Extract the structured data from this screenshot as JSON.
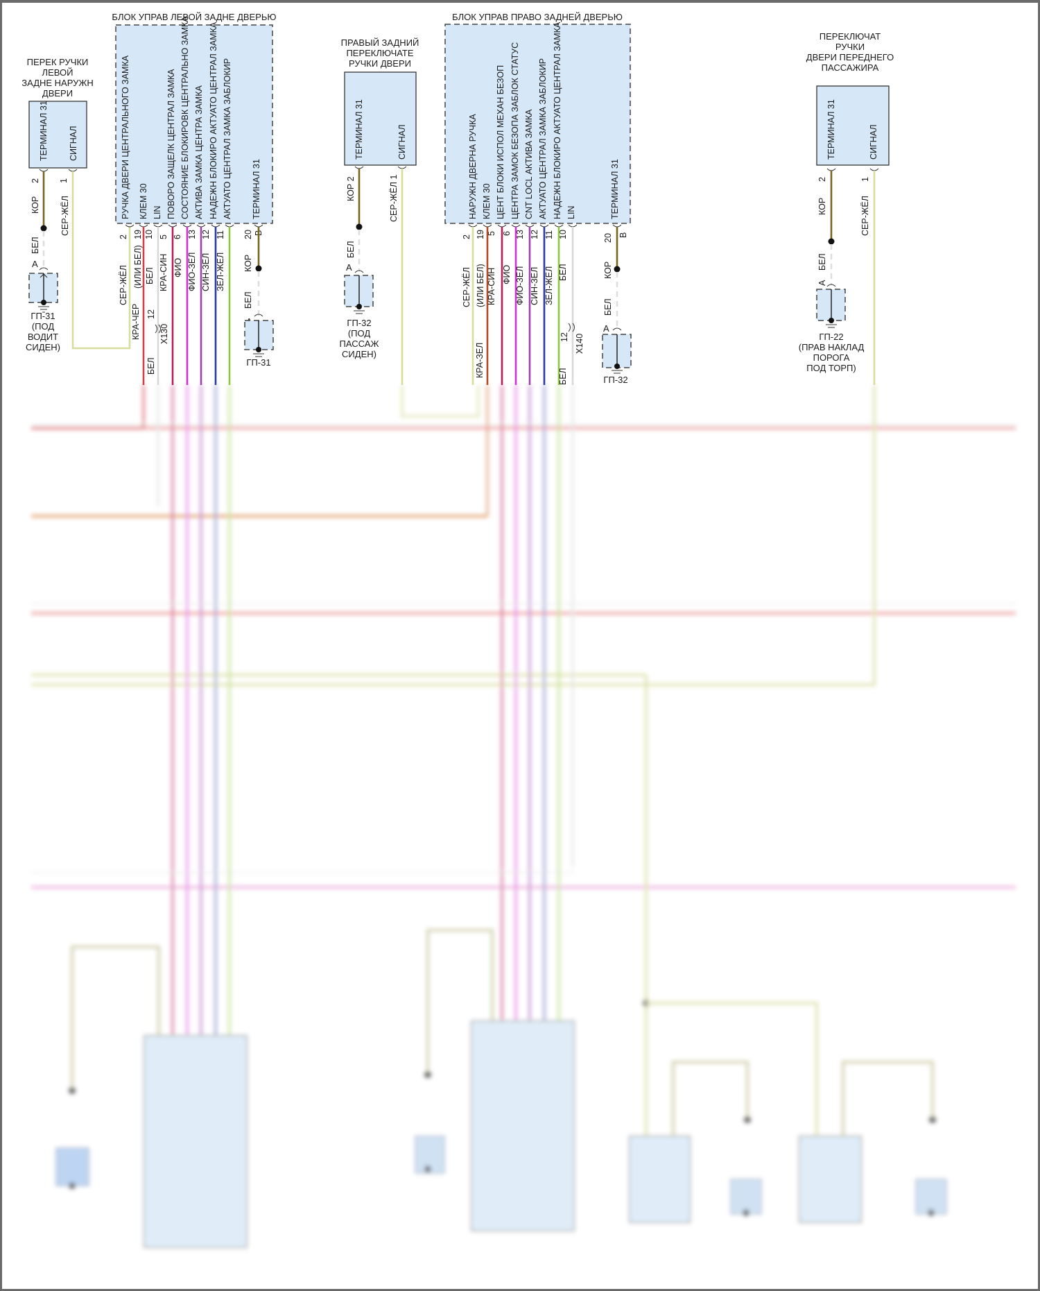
{
  "left_switch": {
    "title": [
      "ПЕРЕК РУЧКИ",
      "ЛЕВОЙ",
      "ЗАДНЕ НАРУЖН",
      "ДВЕРИ"
    ],
    "pins": [
      "ТЕРМИНАЛ 31",
      "СИГНАЛ"
    ],
    "pin_numbers": [
      "2",
      "1"
    ],
    "wires": [
      "КОР",
      "СЕР-ЖЁЛ",
      "БЕЛ"
    ],
    "connector": "A",
    "ground": [
      "ГП-31",
      "(ПОД",
      "ВОДИТ",
      "СИДЕН)"
    ]
  },
  "left_block": {
    "title": "БЛОК УПРАВ ЛЕВОЙ ЗАДНЕ ДВЕРЬЮ",
    "pins": [
      "РУЧКА ДВЕРИ ЦЕНТРАЛЬНОГО ЗАМКА",
      "КЛЕМ 30",
      "LIN",
      "ПОВОРО ЗАЩЕЛК ЦЕНТРАЛ ЗАМКА",
      "СОСТОЯНИЕ БЛОКИРОВК ЦЕНТРАЛЬНО ЗАМКА",
      "АКТИВА ЗАМКА ЦЕНТРА ЗАМКА",
      "НАДЕЖН БЛОКИРО АКТУАТО ЦЕНТРАЛ ЗАМКА",
      "АКТУАТО ЦЕНТРАЛ ЗАМКА ЗАБЛОКИР",
      "ТЕРМИНАЛ 31"
    ],
    "pin_numbers": [
      "2",
      "19",
      "10",
      "5",
      "6",
      "13",
      "12",
      "11",
      "20",
      "B"
    ],
    "wires": [
      "СЕР-ЖЁЛ",
      "(ИЛИ БЕЛ)",
      "БЕЛ",
      "КРА-СИН",
      "ФИО",
      "ФИО-ЗЕЛ",
      "СИН-ЗЕЛ",
      "ЗЕЛ-ЖЕЛ",
      "КОР"
    ],
    "lower_wires": [
      "КРА-ЧЕР",
      "12",
      "X130",
      "БЕЛ"
    ],
    "ground_wire": "БЕЛ",
    "connector": "A",
    "ground": "ГП-31"
  },
  "mid_switch": {
    "title": [
      "ПРАВЫЙ ЗАДНИЙ",
      "ПЕРЕКЛЮЧАТЕ",
      "РУЧКИ ДВЕРИ"
    ],
    "pins": [
      "ТЕРМИНАЛ 31",
      "СИГНАЛ"
    ],
    "wires": [
      "КОР 2",
      "СЕР-ЖЁЛ 1",
      "БЕЛ"
    ],
    "connector": "A",
    "ground": [
      "ГП-32",
      "(ПОД",
      "ПАССАЖ",
      "СИДЕН)"
    ]
  },
  "right_block": {
    "title": "БЛОК УПРАВ ПРАВО ЗАДНЕЙ ДВЕРЬЮ",
    "pins": [
      "НАРУЖН ДВЕРНА РУЧКА",
      "КЛЕМ 30",
      "ЦЕНТ БЛОКИ ИСПОЛ МЕХАН БЕЗОП",
      "ЦЕНТРА ЗАМОК БЕЗОПА ЗАБЛОК СТАТУС",
      "CNT LOCL АКТИВА ЗАМКА",
      "АКТУАТО ЦЕНТРАЛ ЗАМКА ЗАБЛОКИР",
      "НАДЕЖН БЛОКИРО АКТУАТО ЦЕНТРАЛ ЗАМКА",
      "LIN",
      "ТЕРМИНАЛ 31"
    ],
    "pin_numbers": [
      "2",
      "19",
      "5",
      "6",
      "13",
      "12",
      "11",
      "10",
      "20",
      "B"
    ],
    "wires": [
      "СЕР-ЖЁЛ",
      "(ИЛИ БЕЛ)",
      "КРА-СИН",
      "ФИО",
      "ФИО-ЗЕЛ",
      "СИН-ЗЕЛ",
      "ЗЕЛ-ЖЕЛ",
      "БЕЛ",
      "КОР"
    ],
    "lower_wires": [
      "КРА-ЗЕЛ",
      "БЕЛ",
      "12",
      "X140"
    ],
    "ground_wire": "БЕЛ",
    "connector": "A",
    "ground": "ГП-32"
  },
  "right_switch": {
    "title": [
      "ПЕРЕКЛЮЧАТ",
      "РУЧКИ",
      "ДВЕРИ ПЕРЕДНЕГО",
      "ПАССАЖИРА"
    ],
    "pins": [
      "ТЕРМИНАЛ 31",
      "СИГНАЛ"
    ],
    "pin_numbers": [
      "2",
      "1"
    ],
    "wires": [
      "КОР",
      "СЕР-ЖЁЛ",
      "БЕЛ"
    ],
    "connector": "A",
    "ground": [
      "ГП-22",
      "(ПРАВ НАКЛАД",
      "ПОРОГА",
      "ПОД ТОРП)"
    ]
  },
  "colors": {
    "box_fill": "#d6e8f8",
    "kor": "#7a6420",
    "ser_zhel": "#d8dc9c",
    "red": "#d0404a",
    "bel": "#d8d8d8",
    "fio": "#b0205a",
    "fio_zel": "#d030d0",
    "sin_zel": "#a040b0",
    "zel_zhel": "#2a3aa0",
    "zel": "#8cc83c",
    "kra_sin": "#b04a20"
  }
}
